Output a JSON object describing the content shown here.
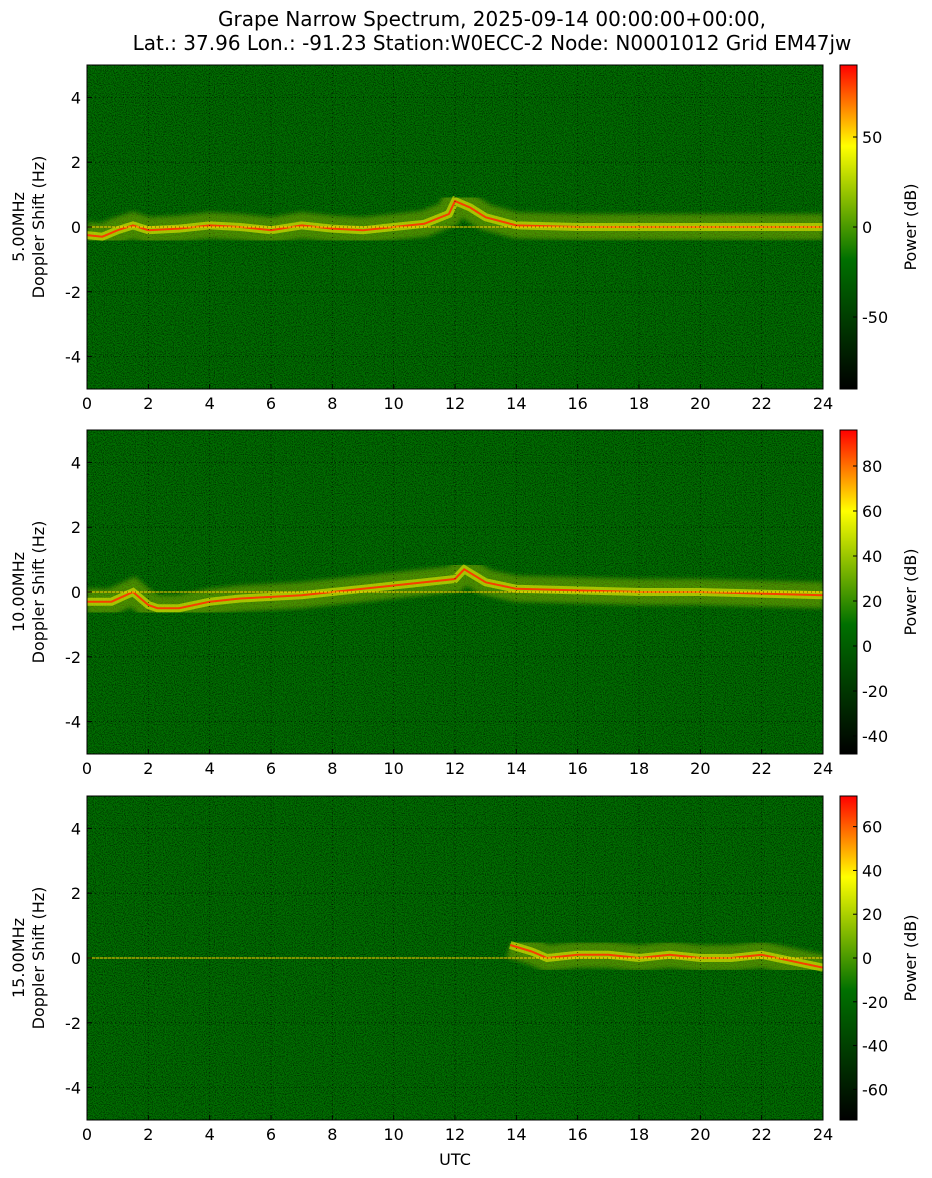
{
  "title_line1": "Grape Narrow Spectrum, 2025-09-14 00:00:00+00:00,",
  "title_line2": "Lat.: 37.96 Lon.: -91.23 Station:W0ECC-2 Node: N0001012 Grid EM47jw",
  "colorbar_label": "Power (dB)",
  "colors": {
    "stops": [
      "#000000",
      "#007000",
      "#ffff00",
      "#ff0000"
    ],
    "gridline": "#000000"
  },
  "chart_data": [
    {
      "type": "heatmap",
      "ylabel_line1": "5.00MHz",
      "ylabel_line2": "Doppler Shift (Hz)",
      "xlabel": "",
      "xlim": [
        0,
        24
      ],
      "ylim": [
        -5,
        5
      ],
      "x_ticks": [
        0,
        2,
        4,
        6,
        8,
        10,
        12,
        14,
        16,
        18,
        20,
        22,
        24
      ],
      "y_ticks": [
        -4,
        -2,
        0,
        2,
        4
      ],
      "grid": true,
      "colorbar": {
        "min": -90,
        "max": 90,
        "ticks": [
          -50,
          0,
          50
        ]
      },
      "trace": [
        [
          0.0,
          -0.25
        ],
        [
          0.5,
          -0.3
        ],
        [
          1.0,
          -0.1
        ],
        [
          1.5,
          0.05
        ],
        [
          2.0,
          -0.1
        ],
        [
          3.0,
          -0.05
        ],
        [
          4.0,
          0.05
        ],
        [
          5.0,
          0.0
        ],
        [
          6.0,
          -0.1
        ],
        [
          7.0,
          0.05
        ],
        [
          8.0,
          -0.05
        ],
        [
          9.0,
          -0.1
        ],
        [
          10.0,
          0.0
        ],
        [
          11.0,
          0.1
        ],
        [
          11.8,
          0.4
        ],
        [
          12.0,
          0.8
        ],
        [
          12.5,
          0.6
        ],
        [
          13.0,
          0.3
        ],
        [
          14.0,
          0.05
        ],
        [
          16.0,
          0.0
        ],
        [
          24.0,
          0.0
        ]
      ]
    },
    {
      "type": "heatmap",
      "ylabel_line1": "10.00MHz",
      "ylabel_line2": "Doppler Shift (Hz)",
      "xlabel": "",
      "xlim": [
        0,
        24
      ],
      "ylim": [
        -5,
        5
      ],
      "x_ticks": [
        0,
        2,
        4,
        6,
        8,
        10,
        12,
        14,
        16,
        18,
        20,
        22,
        24
      ],
      "y_ticks": [
        -4,
        -2,
        0,
        2,
        4
      ],
      "grid": true,
      "colorbar": {
        "min": -48,
        "max": 96,
        "ticks": [
          -40,
          -20,
          0,
          20,
          40,
          60,
          80
        ]
      },
      "trace": [
        [
          0.0,
          -0.3
        ],
        [
          0.8,
          -0.3
        ],
        [
          1.5,
          0.0
        ],
        [
          2.0,
          -0.4
        ],
        [
          2.3,
          -0.5
        ],
        [
          3.0,
          -0.5
        ],
        [
          4.0,
          -0.3
        ],
        [
          5.0,
          -0.2
        ],
        [
          6.0,
          -0.15
        ],
        [
          7.0,
          -0.1
        ],
        [
          8.0,
          0.0
        ],
        [
          9.0,
          0.1
        ],
        [
          10.0,
          0.2
        ],
        [
          11.0,
          0.3
        ],
        [
          12.0,
          0.4
        ],
        [
          12.3,
          0.7
        ],
        [
          13.0,
          0.3
        ],
        [
          14.0,
          0.1
        ],
        [
          16.0,
          0.05
        ],
        [
          18.0,
          0.0
        ],
        [
          20.0,
          0.0
        ],
        [
          22.0,
          -0.05
        ],
        [
          24.0,
          -0.1
        ]
      ]
    },
    {
      "type": "heatmap",
      "ylabel_line1": "15.00MHz",
      "ylabel_line2": "Doppler Shift (Hz)",
      "xlabel": "UTC",
      "xlim": [
        0,
        24
      ],
      "ylim": [
        -5,
        5
      ],
      "x_ticks": [
        0,
        2,
        4,
        6,
        8,
        10,
        12,
        14,
        16,
        18,
        20,
        22,
        24
      ],
      "y_ticks": [
        -4,
        -2,
        0,
        2,
        4
      ],
      "grid": true,
      "colorbar": {
        "min": -74,
        "max": 74,
        "ticks": [
          -60,
          -40,
          -20,
          0,
          20,
          40,
          60
        ]
      },
      "trace": [
        [
          13.8,
          0.4
        ],
        [
          14.5,
          0.2
        ],
        [
          15.0,
          0.0
        ],
        [
          16.0,
          0.1
        ],
        [
          17.0,
          0.1
        ],
        [
          18.0,
          0.0
        ],
        [
          19.0,
          0.1
        ],
        [
          20.0,
          0.0
        ],
        [
          21.0,
          0.0
        ],
        [
          22.0,
          0.1
        ],
        [
          23.0,
          -0.1
        ],
        [
          24.0,
          -0.3
        ]
      ]
    }
  ]
}
